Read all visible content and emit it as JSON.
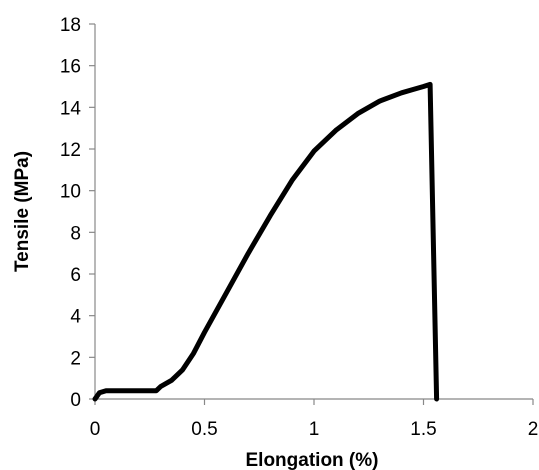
{
  "chart_data": {
    "type": "line",
    "title": "",
    "xlabel": "Elongation (%)",
    "ylabel": "Tensile (MPa)",
    "xlim": [
      0,
      2
    ],
    "ylim": [
      0,
      18
    ],
    "x_ticks": [
      0,
      0.5,
      1,
      1.5,
      2
    ],
    "x_tick_labels": [
      "0",
      "0.5",
      "1",
      "1.5",
      "2"
    ],
    "y_ticks": [
      0,
      2,
      4,
      6,
      8,
      10,
      12,
      14,
      16,
      18
    ],
    "y_tick_labels": [
      "0",
      "2",
      "4",
      "6",
      "8",
      "10",
      "12",
      "14",
      "16",
      "18"
    ],
    "grid": false,
    "legend": "none",
    "series": [
      {
        "color": "#000000",
        "x": [
          0,
          0.02,
          0.05,
          0.1,
          0.2,
          0.28,
          0.3,
          0.35,
          0.4,
          0.45,
          0.5,
          0.6,
          0.7,
          0.8,
          0.9,
          1.0,
          1.1,
          1.2,
          1.3,
          1.4,
          1.45,
          1.5,
          1.53,
          1.56
        ],
        "y": [
          0,
          0.3,
          0.4,
          0.4,
          0.4,
          0.4,
          0.6,
          0.9,
          1.4,
          2.2,
          3.2,
          5.1,
          7.0,
          8.8,
          10.5,
          11.9,
          12.9,
          13.7,
          14.3,
          14.7,
          14.85,
          15.0,
          15.1,
          0
        ]
      }
    ]
  }
}
